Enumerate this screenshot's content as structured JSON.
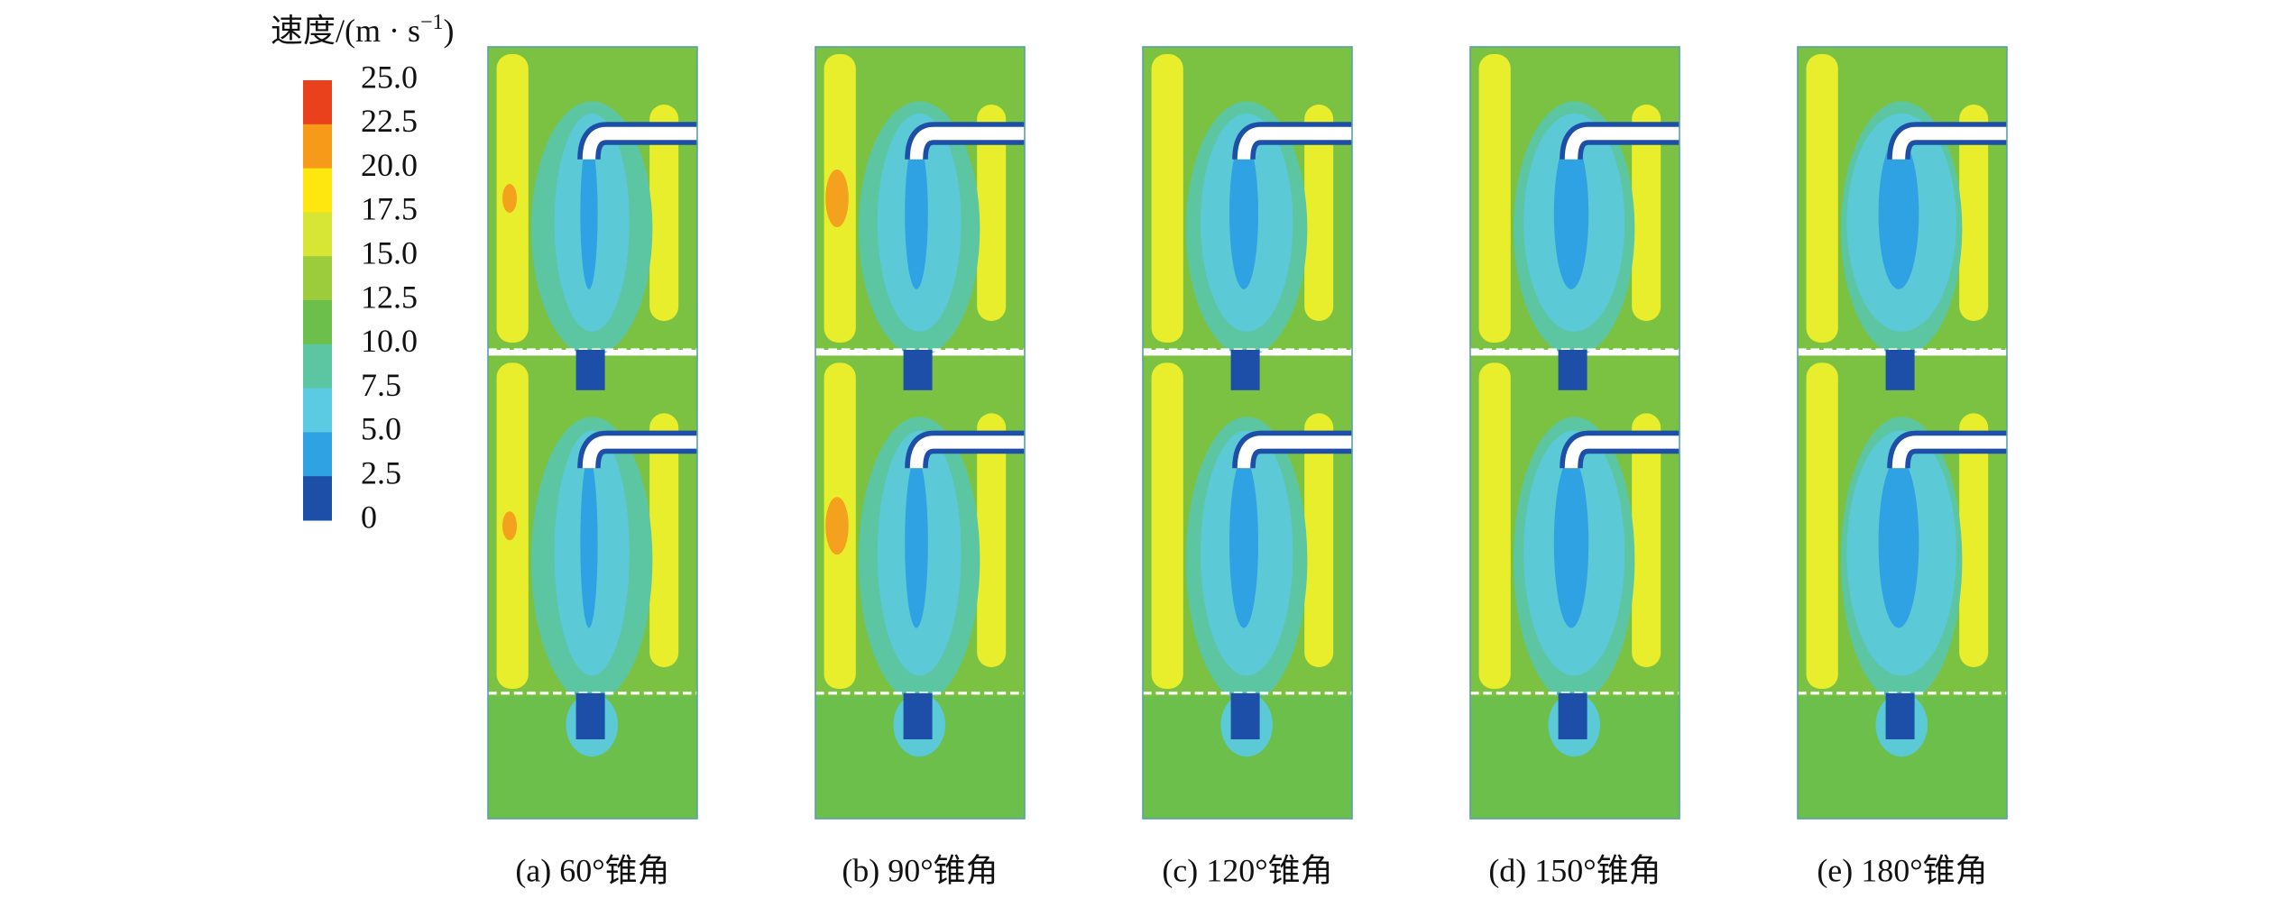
{
  "legend": {
    "title_main": "速度/(m · s",
    "title_sup": "−1",
    "title_end": ")",
    "ticks": [
      "25.0",
      "22.5",
      "20.0",
      "17.5",
      "15.0",
      "12.5",
      "10.0",
      "7.5",
      "5.0",
      "2.5",
      "0"
    ],
    "colors": [
      "#e8411c",
      "#f79a1a",
      "#fde70f",
      "#d7e635",
      "#9ccc3b",
      "#6cbf4a",
      "#5cc6a2",
      "#5bcbe3",
      "#2fa2e3",
      "#1e4fa8"
    ]
  },
  "captions": [
    "(a) 60°锥角",
    "(b) 90°锥角",
    "(c) 120°锥角",
    "(d) 150°锥角",
    "(e) 180°锥角"
  ]
}
